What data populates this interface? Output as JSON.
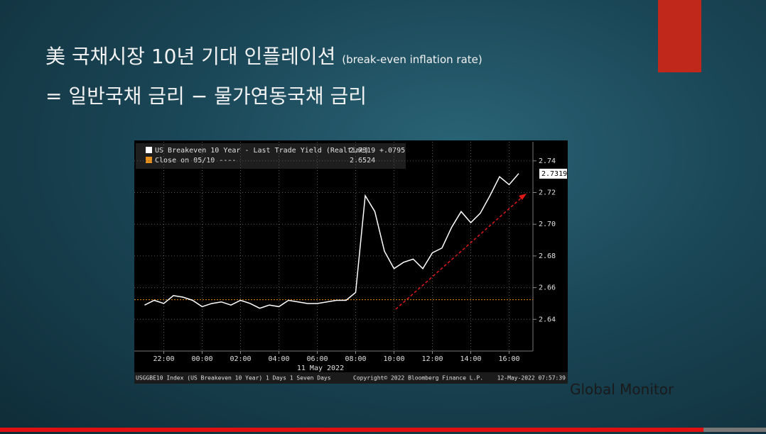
{
  "slide": {
    "title_line1": "美 국채시장 10년 기대 인플레이션",
    "title_note": "(break-even inflation rate)",
    "title_line2": "= 일반국채 금리 − 물가연동국채 금리",
    "brand": "Global Monitor"
  },
  "chart_data": {
    "type": "line",
    "legend_change": "+.0795",
    "close_label": "Close on 05/10 ----",
    "close_value": 2.6524,
    "close_color": "#e8901c",
    "last_value": 2.7319,
    "date_label": "11 May 2022",
    "footer_left": "USGGBE10 Index (US Breakeven 10 Year) 1 Days 1 Seven Days",
    "footer_mid": "Copyright© 2022 Bloomberg Finance L.P.",
    "footer_right": "12-May-2022 07:57:39",
    "x": [
      "21:00",
      "21:30",
      "22:00",
      "22:30",
      "23:00",
      "23:30",
      "00:00",
      "00:30",
      "01:00",
      "01:30",
      "02:00",
      "02:30",
      "03:00",
      "03:30",
      "04:00",
      "04:30",
      "05:00",
      "05:30",
      "06:00",
      "06:30",
      "07:00",
      "07:30",
      "08:00",
      "08:30",
      "09:00",
      "09:30",
      "10:00",
      "10:30",
      "11:00",
      "11:30",
      "12:00",
      "12:30",
      "13:00",
      "13:30",
      "14:00",
      "14:30",
      "15:00",
      "15:30",
      "16:00",
      "16:30"
    ],
    "series": [
      {
        "name": "US Breakeven 10 Year - Last Trade Yield (Realtime)",
        "color": "#ffffff",
        "values": [
          2.649,
          2.652,
          2.65,
          2.655,
          2.654,
          2.652,
          2.648,
          2.65,
          2.651,
          2.649,
          2.652,
          2.65,
          2.647,
          2.649,
          2.648,
          2.652,
          2.651,
          2.65,
          2.65,
          2.651,
          2.652,
          2.652,
          2.657,
          2.718,
          2.708,
          2.683,
          2.672,
          2.676,
          2.678,
          2.672,
          2.682,
          2.685,
          2.698,
          2.708,
          2.701,
          2.707,
          2.718,
          2.73,
          2.725,
          2.732
        ]
      }
    ],
    "ylim": [
      2.62,
      2.752
    ],
    "yticks": [
      2.64,
      2.66,
      2.68,
      {
        "value": 2.7,
        "label": "2.70"
      },
      2.72,
      2.74
    ],
    "xticks": [
      "22:00",
      "00:00",
      "02:00",
      "04:00",
      "06:00",
      "08:00",
      "10:00",
      "12:00",
      "14:00",
      "16:00"
    ],
    "grid": true
  }
}
